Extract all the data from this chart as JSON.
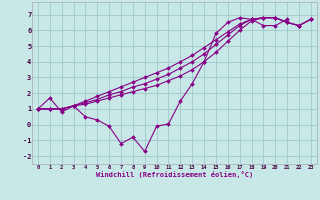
{
  "xlabel": "Windchill (Refroidissement éolien,°C)",
  "background_color": "#c8e8e8",
  "grid_color": "#a0c8c8",
  "line_color": "#880088",
  "xlim": [
    -0.5,
    23.5
  ],
  "ylim": [
    -2.5,
    7.8
  ],
  "xticks": [
    0,
    1,
    2,
    3,
    4,
    5,
    6,
    7,
    8,
    9,
    10,
    11,
    12,
    13,
    14,
    15,
    16,
    17,
    18,
    19,
    20,
    21,
    22,
    23
  ],
  "yticks": [
    -2,
    -1,
    0,
    1,
    2,
    3,
    4,
    5,
    6,
    7
  ],
  "lines": [
    {
      "x": [
        0,
        1,
        2,
        3,
        4,
        5,
        6,
        7,
        8,
        9,
        10,
        11,
        12,
        13,
        14,
        15,
        16,
        17,
        18,
        19,
        20,
        21,
        22,
        23
      ],
      "y": [
        1.0,
        1.7,
        0.8,
        1.2,
        0.5,
        0.3,
        -0.1,
        -1.2,
        -0.8,
        -1.7,
        -0.1,
        0.05,
        1.5,
        2.6,
        4.0,
        5.8,
        6.5,
        6.8,
        6.7,
        6.3,
        6.3,
        6.7,
        null,
        null
      ]
    },
    {
      "x": [
        0,
        1,
        2,
        3,
        4,
        5,
        6,
        7,
        8,
        9,
        10,
        11,
        12,
        13,
        14,
        15,
        16,
        17,
        18,
        19,
        20,
        21,
        22,
        23
      ],
      "y": [
        1.0,
        1.0,
        1.0,
        1.2,
        1.3,
        1.5,
        1.7,
        1.9,
        2.1,
        2.3,
        2.5,
        2.8,
        3.1,
        3.5,
        4.0,
        4.6,
        5.3,
        6.0,
        6.6,
        6.8,
        6.8,
        6.5,
        6.3,
        6.7
      ]
    },
    {
      "x": [
        0,
        1,
        2,
        3,
        4,
        5,
        6,
        7,
        8,
        9,
        10,
        11,
        12,
        13,
        14,
        15,
        16,
        17,
        18,
        19,
        20,
        21,
        22,
        23
      ],
      "y": [
        1.0,
        1.0,
        1.0,
        1.2,
        1.4,
        1.6,
        1.9,
        2.1,
        2.4,
        2.6,
        2.9,
        3.2,
        3.6,
        4.0,
        4.5,
        5.1,
        5.7,
        6.3,
        6.7,
        6.8,
        6.8,
        6.5,
        6.3,
        6.7
      ]
    },
    {
      "x": [
        0,
        1,
        2,
        3,
        4,
        5,
        6,
        7,
        8,
        9,
        10,
        11,
        12,
        13,
        14,
        15,
        16,
        17,
        18,
        19,
        20,
        21,
        22,
        23
      ],
      "y": [
        1.0,
        1.0,
        1.0,
        1.2,
        1.5,
        1.8,
        2.1,
        2.4,
        2.7,
        3.0,
        3.3,
        3.6,
        4.0,
        4.4,
        4.9,
        5.4,
        5.9,
        6.4,
        6.7,
        6.8,
        6.8,
        6.5,
        6.3,
        6.7
      ]
    }
  ]
}
